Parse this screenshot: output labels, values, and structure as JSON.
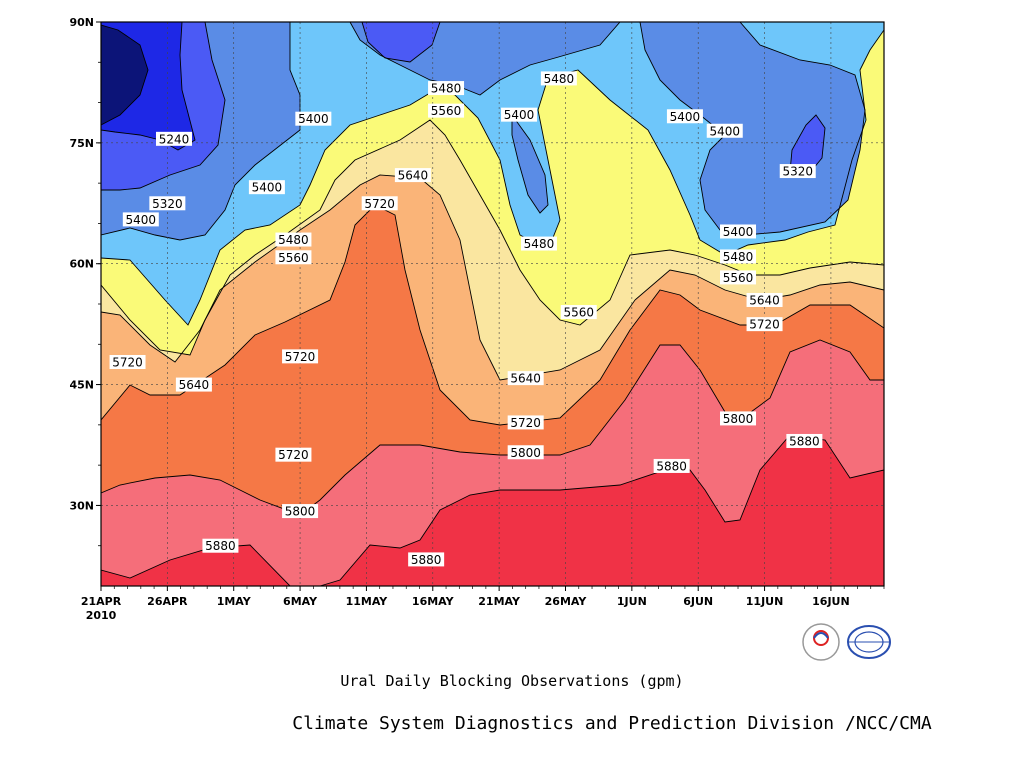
{
  "chart_data": {
    "type": "contour",
    "title": "Ural Daily Blocking Observations (gpm)",
    "credit": "Climate System Diagnostics and Prediction Division /NCC/CMA",
    "x_tick_labels": [
      "21APR",
      "26APR",
      "1MAY",
      "6MAY",
      "11MAY",
      "16MAY",
      "21MAY",
      "26MAY",
      "1JUN",
      "6JUN",
      "11JUN",
      "16JUN"
    ],
    "x_year_label": "2010",
    "y_tick_labels": [
      "30N",
      "45N",
      "60N",
      "75N",
      "90N"
    ],
    "y_tick_values": [
      30,
      45,
      60,
      75,
      90
    ],
    "ylim": [
      20,
      90
    ],
    "x_days_range": [
      0,
      59
    ],
    "grid": "dotted",
    "contour_levels": [
      5240,
      5320,
      5400,
      5480,
      5560,
      5640,
      5720,
      5800,
      5880
    ],
    "fill_colors": [
      "#0c1478",
      "#1e28e6",
      "#4b5af5",
      "#5a8ce6",
      "#6ec6fa",
      "#fafa78",
      "#fae6a0",
      "#fab478",
      "#f57846",
      "#f56e7a",
      "#f03246"
    ],
    "contour_labels": [
      {
        "text": "5240",
        "day": 5.5,
        "lat": 75.5
      },
      {
        "text": "5320",
        "day": 5.0,
        "lat": 67.5
      },
      {
        "text": "5400",
        "day": 3.0,
        "lat": 65.5
      },
      {
        "text": "5400",
        "day": 12.5,
        "lat": 69.5
      },
      {
        "text": "5400",
        "day": 16.0,
        "lat": 78.0
      },
      {
        "text": "5480",
        "day": 14.5,
        "lat": 63.0
      },
      {
        "text": "5560",
        "day": 14.5,
        "lat": 60.8
      },
      {
        "text": "5640",
        "day": 23.5,
        "lat": 71.0
      },
      {
        "text": "5720",
        "day": 21.0,
        "lat": 67.5
      },
      {
        "text": "5560",
        "day": 26.0,
        "lat": 79.0
      },
      {
        "text": "5480",
        "day": 26.0,
        "lat": 81.8
      },
      {
        "text": "5400",
        "day": 31.5,
        "lat": 78.5
      },
      {
        "text": "5480",
        "day": 34.5,
        "lat": 83.0
      },
      {
        "text": "5480",
        "day": 33.0,
        "lat": 62.5
      },
      {
        "text": "5560",
        "day": 36.0,
        "lat": 54.0
      },
      {
        "text": "5400",
        "day": 44.0,
        "lat": 78.3
      },
      {
        "text": "5400",
        "day": 47.0,
        "lat": 76.5
      },
      {
        "text": "5320",
        "day": 52.5,
        "lat": 71.5
      },
      {
        "text": "5400",
        "day": 48.0,
        "lat": 64.0
      },
      {
        "text": "5480",
        "day": 48.0,
        "lat": 60.9
      },
      {
        "text": "5560",
        "day": 48.0,
        "lat": 58.3
      },
      {
        "text": "5640",
        "day": 50.0,
        "lat": 55.5
      },
      {
        "text": "5720",
        "day": 50.0,
        "lat": 52.5
      },
      {
        "text": "5720",
        "day": 2.0,
        "lat": 47.8
      },
      {
        "text": "5640",
        "day": 7.0,
        "lat": 45.0
      },
      {
        "text": "5720",
        "day": 15.0,
        "lat": 48.5
      },
      {
        "text": "5640",
        "day": 32.0,
        "lat": 45.8
      },
      {
        "text": "5720",
        "day": 32.0,
        "lat": 40.3
      },
      {
        "text": "5800",
        "day": 32.0,
        "lat": 36.6
      },
      {
        "text": "5720",
        "day": 14.5,
        "lat": 36.3
      },
      {
        "text": "5800",
        "day": 15.0,
        "lat": 29.3
      },
      {
        "text": "5880",
        "day": 9.0,
        "lat": 25.0
      },
      {
        "text": "5880",
        "day": 24.5,
        "lat": 23.3
      },
      {
        "text": "5880",
        "day": 43.0,
        "lat": 34.9
      },
      {
        "text": "5800",
        "day": 48.0,
        "lat": 40.8
      },
      {
        "text": "5880",
        "day": 53.0,
        "lat": 38.0
      }
    ]
  }
}
